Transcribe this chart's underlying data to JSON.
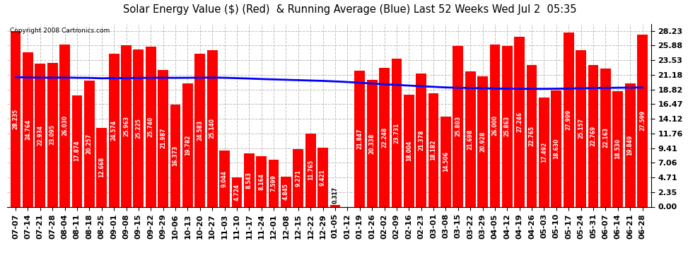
{
  "title": "Solar Energy Value ($) (Red)  & Running Average (Blue) Last 52 Weeks Wed Jul 2  05:35",
  "copyright": "Copyright 2008 Cartronics.com",
  "bar_color": "#ff0000",
  "avg_line_color": "#0000ff",
  "background_color": "#ffffff",
  "plot_bg_color": "#ffffff",
  "grid_color": "#c0c0c0",
  "categories": [
    "07-07",
    "07-14",
    "07-21",
    "07-28",
    "08-04",
    "08-11",
    "08-18",
    "08-25",
    "09-01",
    "09-08",
    "09-15",
    "09-22",
    "09-29",
    "10-06",
    "10-13",
    "10-20",
    "10-27",
    "11-03",
    "11-10",
    "11-17",
    "11-24",
    "12-01",
    "12-08",
    "12-15",
    "12-22",
    "12-29",
    "01-05",
    "01-12",
    "01-19",
    "01-26",
    "02-02",
    "02-09",
    "02-16",
    "02-23",
    "03-01",
    "03-08",
    "03-15",
    "03-22",
    "03-29",
    "04-05",
    "04-12",
    "04-19",
    "04-26",
    "05-03",
    "05-10",
    "05-17",
    "05-24",
    "05-31",
    "06-07",
    "06-14",
    "06-21",
    "06-28"
  ],
  "values": [
    28.235,
    24.764,
    22.934,
    23.095,
    26.03,
    17.874,
    20.257,
    12.668,
    24.574,
    25.963,
    25.225,
    25.74,
    21.987,
    16.373,
    19.782,
    24.583,
    25.14,
    9.044,
    4.724,
    8.543,
    8.164,
    7.599,
    4.845,
    9.271,
    11.765,
    9.421,
    0.317,
    0.0,
    21.847,
    20.338,
    22.248,
    23.731,
    18.004,
    21.378,
    18.182,
    14.506,
    25.803,
    21.698,
    20.928,
    26.0,
    25.863,
    27.246,
    22.765,
    17.492,
    18.63,
    27.999,
    25.157,
    22.769,
    22.163,
    18.53,
    19.849,
    27.599
  ],
  "running_avg": [
    20.8,
    20.75,
    20.72,
    20.72,
    20.74,
    20.7,
    20.68,
    20.62,
    20.64,
    20.66,
    20.68,
    20.7,
    20.71,
    20.69,
    20.7,
    20.72,
    20.74,
    20.7,
    20.64,
    20.58,
    20.5,
    20.44,
    20.38,
    20.32,
    20.26,
    20.2,
    20.12,
    20.02,
    19.9,
    19.78,
    19.66,
    19.55,
    19.45,
    19.35,
    19.25,
    19.15,
    19.1,
    19.06,
    19.02,
    18.98,
    18.96,
    18.94,
    18.93,
    18.93,
    18.95,
    18.98,
    19.02,
    19.05,
    19.08,
    19.1,
    19.12,
    19.15
  ],
  "ylim": [
    0.0,
    28.23
  ],
  "yticks": [
    0.0,
    2.35,
    4.71,
    7.06,
    9.41,
    11.76,
    14.12,
    16.47,
    18.82,
    21.18,
    23.53,
    25.88,
    28.23
  ],
  "title_fontsize": 10.5,
  "tick_fontsize": 8,
  "label_fontsize": 5.5,
  "copyright_fontsize": 6.5
}
